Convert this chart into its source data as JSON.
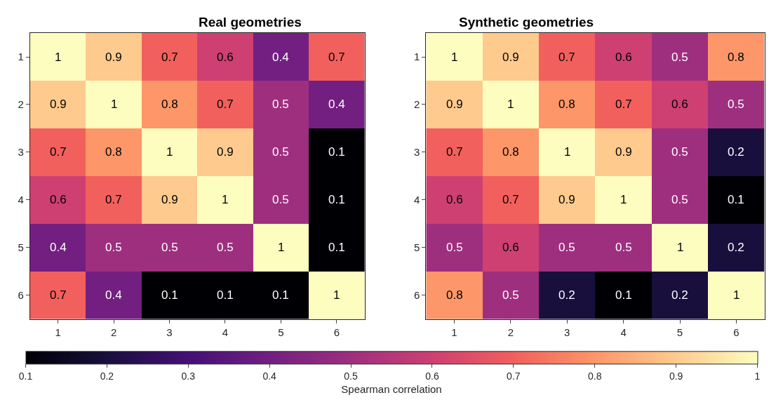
{
  "chart_data": [
    {
      "type": "heatmap",
      "title": "Real geometries",
      "categories": [
        "1",
        "2",
        "3",
        "4",
        "5",
        "6"
      ],
      "y_categories": [
        "1",
        "2",
        "3",
        "4",
        "5",
        "6"
      ],
      "cells": [
        [
          1,
          0.9,
          0.7,
          0.6,
          0.4,
          0.7
        ],
        [
          0.9,
          1,
          0.8,
          0.7,
          0.5,
          0.4
        ],
        [
          0.7,
          0.8,
          1,
          0.9,
          0.5,
          0.1
        ],
        [
          0.6,
          0.7,
          0.9,
          1,
          0.5,
          0.1
        ],
        [
          0.4,
          0.5,
          0.5,
          0.5,
          1,
          0.1
        ],
        [
          0.7,
          0.4,
          0.1,
          0.1,
          0.1,
          1
        ]
      ],
      "data_labels": true,
      "clim": [
        0.1,
        1
      ],
      "cticks": [
        0.1,
        0.2,
        0.3,
        0.4,
        0.5,
        0.6,
        0.7,
        0.8,
        0.9,
        1
      ],
      "clabel": "Spearman correlation"
    },
    {
      "type": "heatmap",
      "title": "Synthetic geometries",
      "categories": [
        "1",
        "2",
        "3",
        "4",
        "5",
        "6"
      ],
      "y_categories": [
        "1",
        "2",
        "3",
        "4",
        "5",
        "6"
      ],
      "cells": [
        [
          1,
          0.9,
          0.7,
          0.6,
          0.5,
          0.8
        ],
        [
          0.9,
          1,
          0.8,
          0.7,
          0.6,
          0.5
        ],
        [
          0.7,
          0.8,
          1,
          0.9,
          0.5,
          0.2
        ],
        [
          0.6,
          0.7,
          0.9,
          1,
          0.5,
          0.1
        ],
        [
          0.5,
          0.6,
          0.5,
          0.5,
          1,
          0.2
        ],
        [
          0.8,
          0.5,
          0.2,
          0.1,
          0.2,
          1
        ]
      ],
      "data_labels": true
    }
  ]
}
